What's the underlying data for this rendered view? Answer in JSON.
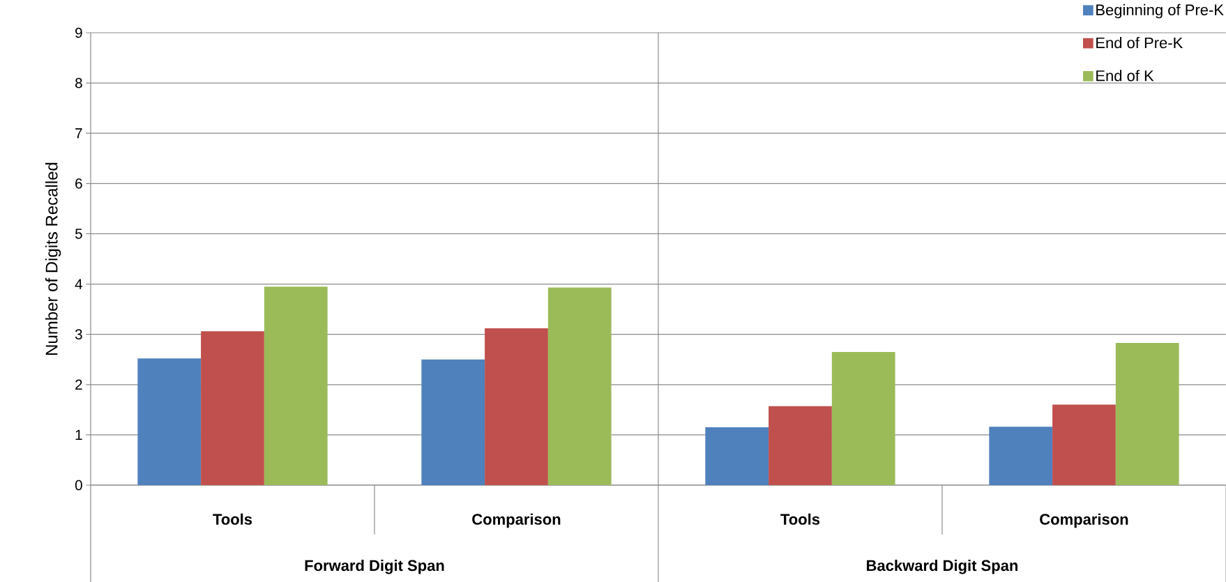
{
  "chart_data": {
    "type": "bar",
    "categories": [
      "Tools",
      "Comparison",
      "Tools",
      "Comparison"
    ],
    "ylabel": "Number of Digits Recalled",
    "annotations": [
      "Forward Digit Span",
      "Backward Digit Span"
    ],
    "series": [
      {
        "name": "Beginning of Pre-K",
        "color": "#4f81bd",
        "values": [
          2.52,
          2.5,
          1.15,
          1.16
        ]
      },
      {
        "name": "End of Pre-K",
        "color": "#c0504d",
        "values": [
          3.06,
          3.12,
          1.57,
          1.6
        ]
      },
      {
        "name": "End of K",
        "color": "#9bbb59",
        "values": [
          3.95,
          3.93,
          2.65,
          2.83
        ]
      }
    ],
    "ylim": [
      0,
      9
    ],
    "yticks": [
      0,
      1,
      2,
      3,
      4,
      5,
      6,
      7,
      8,
      9
    ],
    "grid": "y",
    "legend": "top right"
  }
}
